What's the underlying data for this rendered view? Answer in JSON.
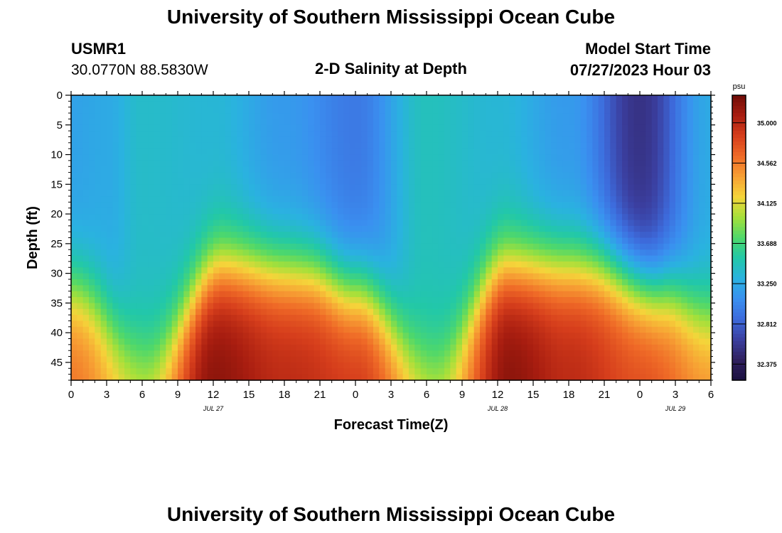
{
  "page": {
    "title": "University of Southern Mississippi Ocean Cube",
    "station": "USMR1",
    "coordinates": "30.0770N  88.5830W",
    "plot_title": "2-D Salinity at Depth",
    "model_start_label": "Model Start Time",
    "model_start_value": "07/27/2023 Hour 03",
    "footer_title": "University of Southern Mississippi Ocean Cube"
  },
  "chart_data": {
    "type": "heatmap",
    "title": "2-D Salinity at Depth",
    "xlabel": "Forecast Time(Z)",
    "ylabel": "Depth (ft)",
    "x_range": [
      0,
      54
    ],
    "y_range": [
      0,
      48
    ],
    "y_inverted": true,
    "x_ticks": [
      "0",
      "3",
      "6",
      "9",
      "12",
      "15",
      "18",
      "21",
      "0",
      "3",
      "6",
      "9",
      "12",
      "15",
      "18",
      "21",
      "0",
      "3",
      "6"
    ],
    "y_ticks": [
      "0",
      "5",
      "10",
      "15",
      "20",
      "25",
      "30",
      "35",
      "40",
      "45"
    ],
    "date_labels": [
      {
        "label": "JUL 27",
        "x": 12
      },
      {
        "label": "JUL 28",
        "x": 36
      },
      {
        "label": "JUL 29",
        "x": 51
      }
    ],
    "colorbar": {
      "unit": "psu",
      "range": [
        32.2,
        35.3
      ],
      "ticks": [
        "35.000",
        "34.562",
        "34.125",
        "33.688",
        "33.250",
        "32.812",
        "32.375"
      ],
      "colors": [
        "#1a0f40",
        "#30215f",
        "#3b3fa0",
        "#3d6bdc",
        "#3a90f0",
        "#2ab2e0",
        "#22c8a8",
        "#4fd86a",
        "#a5e03a",
        "#f5d53a",
        "#f7a034",
        "#ef6a27",
        "#d63e1c",
        "#a81d10",
        "#6f0d07"
      ]
    },
    "surface_salinity_profile": [
      {
        "x": 0,
        "value": 33.2
      },
      {
        "x": 3,
        "value": 33.25
      },
      {
        "x": 6,
        "value": 33.4
      },
      {
        "x": 12,
        "value": 33.35
      },
      {
        "x": 18,
        "value": 33.15
      },
      {
        "x": 24,
        "value": 32.95
      },
      {
        "x": 30,
        "value": 33.45
      },
      {
        "x": 36,
        "value": 33.35
      },
      {
        "x": 42,
        "value": 33.15
      },
      {
        "x": 48,
        "value": 32.55
      },
      {
        "x": 54,
        "value": 33.25
      }
    ],
    "bottom_salinity_profile": [
      {
        "x": 0,
        "value": 34.6
      },
      {
        "x": 6,
        "value": 34.2
      },
      {
        "x": 12,
        "value": 35.2
      },
      {
        "x": 18,
        "value": 35.0
      },
      {
        "x": 24,
        "value": 34.9
      },
      {
        "x": 31,
        "value": 34.2
      },
      {
        "x": 37,
        "value": 35.2
      },
      {
        "x": 42,
        "value": 35.0
      },
      {
        "x": 48,
        "value": 34.8
      },
      {
        "x": 54,
        "value": 34.5
      }
    ],
    "halocline_depth_ft": [
      {
        "x": 0,
        "depth": 33
      },
      {
        "x": 6.5,
        "depth": 44
      },
      {
        "x": 13,
        "depth": 29
      },
      {
        "x": 20,
        "depth": 30
      },
      {
        "x": 24,
        "depth": 33
      },
      {
        "x": 30.5,
        "depth": 45
      },
      {
        "x": 37,
        "depth": 29
      },
      {
        "x": 44,
        "depth": 29
      },
      {
        "x": 50,
        "depth": 33
      },
      {
        "x": 54,
        "depth": 37
      }
    ]
  }
}
